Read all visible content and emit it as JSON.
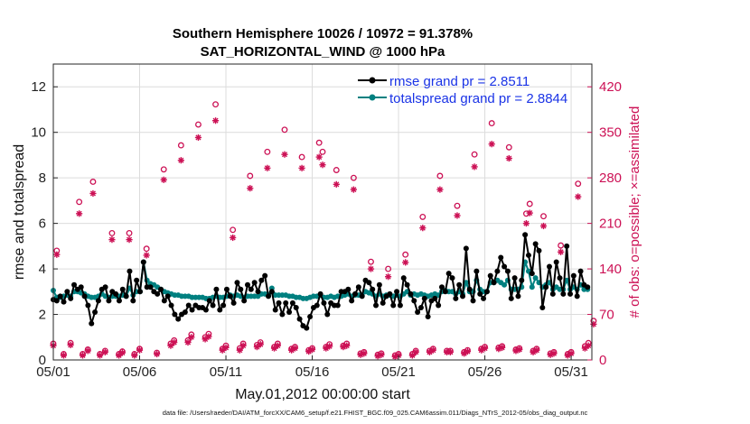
{
  "chart_data": {
    "type": "line",
    "title_line1": "Southern Hemisphere 10026 / 10972 = 91.378%",
    "title_line2": "SAT_HORIZONTAL_WIND @ 1000 hPa",
    "xlabel": "May.01,2012 00:00:00 start",
    "ylabel": "rmse and totalspread",
    "ylabel_right": "# of obs: o=possible; ×=assimilated",
    "footnote": "data file: /Users/raeder/DAI/ATM_forcXX/CAM6_setup/f.e21.FHIST_BGC.f09_025.CAM6assim.011/Diags_NTrS_2012-05/obs_diag_output.nc",
    "xlim": [
      1,
      32.2
    ],
    "ylim": [
      0,
      13
    ],
    "ylim_right": [
      0,
      455
    ],
    "x_ticks": [
      {
        "v": 1,
        "label": "05/01"
      },
      {
        "v": 6,
        "label": "05/06"
      },
      {
        "v": 11,
        "label": "05/11"
      },
      {
        "v": 16,
        "label": "05/16"
      },
      {
        "v": 21,
        "label": "05/21"
      },
      {
        "v": 26,
        "label": "05/26"
      },
      {
        "v": 31,
        "label": "05/31"
      }
    ],
    "y_ticks": [
      0,
      2,
      4,
      6,
      8,
      10,
      12
    ],
    "y_ticks_right": [
      0,
      70,
      140,
      210,
      280,
      350,
      420
    ],
    "grid": true,
    "series": [
      {
        "name": "rmse grand pr = 2.8511",
        "color": "#000000",
        "axis": "left",
        "values": [
          2.65,
          2.6,
          2.8,
          2.55,
          3.0,
          2.7,
          3.3,
          3.1,
          3.2,
          2.8,
          2.4,
          1.6,
          2.1,
          2.6,
          3.1,
          3.2,
          2.6,
          3.0,
          2.9,
          2.6,
          3.1,
          2.8,
          3.9,
          2.6,
          3.5,
          3.0,
          4.3,
          3.2,
          3.2,
          3.0,
          2.9,
          3.1,
          2.6,
          2.8,
          2.4,
          2.0,
          1.8,
          2.0,
          2.1,
          2.4,
          2.2,
          2.4,
          2.3,
          2.3,
          2.2,
          2.6,
          2.4,
          3.1,
          2.2,
          2.4,
          3.1,
          2.8,
          2.5,
          3.4,
          3.1,
          2.6,
          3.3,
          3.1,
          3.4,
          3.0,
          3.5,
          3.7,
          2.8,
          3.0,
          2.2,
          2.5,
          2.0,
          2.5,
          2.1,
          2.5,
          2.3,
          1.8,
          1.5,
          1.4,
          1.9,
          2.3,
          2.4,
          2.9,
          2.5,
          2.0,
          2.5,
          2.4,
          2.4,
          3.0,
          3.0,
          3.1,
          2.6,
          2.9,
          3.2,
          2.8,
          3.5,
          3.4,
          3.1,
          2.4,
          3.3,
          2.5,
          2.8,
          2.9,
          2.4,
          3.0,
          2.4,
          3.6,
          3.3,
          2.9,
          2.6,
          2.1,
          2.3,
          2.7,
          1.9,
          2.6,
          2.7,
          2.4,
          3.2,
          3.0,
          3.8,
          3.6,
          2.7,
          3.3,
          2.8,
          4.9,
          3.1,
          2.6,
          3.9,
          2.9,
          2.7,
          3.0,
          3.7,
          3.4,
          3.9,
          4.5,
          4.1,
          3.9,
          2.7,
          3.6,
          2.8,
          3.5,
          5.5,
          4.6,
          3.8,
          5.1,
          4.8,
          2.3,
          3.2,
          4.1,
          2.9,
          4.3,
          3.6,
          2.9,
          5.0,
          2.9,
          3.7,
          2.8,
          3.9,
          3.3,
          3.2
        ]
      },
      {
        "name": "totalspread grand pr = 2.8844",
        "color": "#008080",
        "axis": "left",
        "values": [
          3.05,
          2.75,
          2.75,
          2.8,
          2.85,
          2.8,
          3.0,
          3.0,
          2.95,
          2.9,
          2.8,
          2.75,
          2.75,
          2.8,
          2.9,
          2.8,
          2.75,
          2.8,
          2.8,
          2.8,
          2.85,
          2.8,
          3.15,
          2.85,
          3.0,
          3.0,
          4.3,
          3.5,
          3.35,
          3.3,
          3.2,
          3.1,
          3.0,
          2.95,
          2.9,
          2.85,
          2.85,
          2.8,
          2.8,
          2.8,
          2.75,
          2.75,
          2.75,
          2.75,
          2.7,
          2.7,
          2.75,
          2.8,
          2.75,
          2.75,
          2.8,
          2.85,
          2.8,
          2.85,
          2.8,
          2.75,
          2.8,
          2.8,
          2.8,
          2.8,
          2.9,
          2.9,
          2.85,
          3.15,
          2.85,
          2.85,
          2.85,
          2.85,
          2.8,
          2.8,
          2.75,
          2.75,
          2.7,
          2.7,
          2.75,
          2.8,
          2.8,
          2.85,
          2.75,
          2.75,
          2.8,
          2.75,
          2.8,
          2.8,
          2.85,
          2.9,
          2.8,
          2.85,
          2.85,
          2.85,
          3.0,
          2.95,
          2.9,
          2.8,
          2.9,
          2.8,
          2.85,
          2.85,
          2.8,
          2.85,
          2.8,
          2.9,
          3.0,
          2.85,
          2.9,
          2.85,
          2.9,
          2.85,
          2.8,
          2.85,
          2.9,
          2.85,
          3.0,
          3.05,
          3.0,
          3.0,
          2.9,
          3.0,
          2.9,
          3.4,
          3.0,
          3.0,
          3.5,
          3.1,
          3.0,
          3.0,
          3.4,
          3.4,
          3.5,
          3.4,
          3.3,
          3.5,
          3.1,
          3.1,
          3.1,
          3.2,
          4.3,
          3.9,
          3.2,
          3.6,
          3.4,
          3.2,
          3.3,
          3.4,
          3.1,
          3.2,
          3.1,
          3.1,
          3.5,
          3.1,
          3.2,
          3.1,
          3.3,
          3.1,
          3.1
        ]
      }
    ],
    "obs_counts": {
      "color": "#cc1155",
      "axis": "right",
      "possible": [
        {
          "x": 1.0,
          "y": 25
        },
        {
          "x": 1.2,
          "y": 168
        },
        {
          "x": 1.6,
          "y": 9
        },
        {
          "x": 2.0,
          "y": 26
        },
        {
          "x": 2.5,
          "y": 243
        },
        {
          "x": 2.7,
          "y": 9
        },
        {
          "x": 3.0,
          "y": 16
        },
        {
          "x": 3.3,
          "y": 274
        },
        {
          "x": 3.7,
          "y": 9
        },
        {
          "x": 4.0,
          "y": 14
        },
        {
          "x": 4.4,
          "y": 195
        },
        {
          "x": 4.8,
          "y": 9
        },
        {
          "x": 5.0,
          "y": 13
        },
        {
          "x": 5.4,
          "y": 195
        },
        {
          "x": 5.7,
          "y": 9
        },
        {
          "x": 6.0,
          "y": 17
        },
        {
          "x": 6.4,
          "y": 171
        },
        {
          "x": 7.0,
          "y": 11
        },
        {
          "x": 7.4,
          "y": 293
        },
        {
          "x": 7.8,
          "y": 25
        },
        {
          "x": 8.0,
          "y": 30
        },
        {
          "x": 8.4,
          "y": 330
        },
        {
          "x": 8.8,
          "y": 30
        },
        {
          "x": 9.0,
          "y": 39
        },
        {
          "x": 9.4,
          "y": 362
        },
        {
          "x": 9.8,
          "y": 35
        },
        {
          "x": 10.0,
          "y": 40
        },
        {
          "x": 10.4,
          "y": 393
        },
        {
          "x": 10.8,
          "y": 17
        },
        {
          "x": 11.0,
          "y": 22
        },
        {
          "x": 11.4,
          "y": 200
        },
        {
          "x": 11.8,
          "y": 18
        },
        {
          "x": 12.0,
          "y": 25
        },
        {
          "x": 12.4,
          "y": 283
        },
        {
          "x": 12.8,
          "y": 23
        },
        {
          "x": 13.0,
          "y": 27
        },
        {
          "x": 13.4,
          "y": 320
        },
        {
          "x": 13.8,
          "y": 20
        },
        {
          "x": 14.0,
          "y": 25
        },
        {
          "x": 14.4,
          "y": 354
        },
        {
          "x": 14.8,
          "y": 17
        },
        {
          "x": 15.0,
          "y": 20
        },
        {
          "x": 15.4,
          "y": 312
        },
        {
          "x": 15.8,
          "y": 15
        },
        {
          "x": 16.0,
          "y": 18
        },
        {
          "x": 16.4,
          "y": 334
        },
        {
          "x": 16.8,
          "y": 20
        },
        {
          "x": 17.0,
          "y": 24
        },
        {
          "x": 17.4,
          "y": 292
        },
        {
          "x": 17.8,
          "y": 22
        },
        {
          "x": 18.0,
          "y": 25
        },
        {
          "x": 18.4,
          "y": 280
        },
        {
          "x": 18.8,
          "y": 10
        },
        {
          "x": 19.0,
          "y": 12
        },
        {
          "x": 19.4,
          "y": 151
        },
        {
          "x": 19.8,
          "y": 8
        },
        {
          "x": 20.0,
          "y": 10
        },
        {
          "x": 20.4,
          "y": 140
        },
        {
          "x": 20.8,
          "y": 7
        },
        {
          "x": 21.0,
          "y": 9
        },
        {
          "x": 21.4,
          "y": 162
        },
        {
          "x": 21.8,
          "y": 9
        },
        {
          "x": 22.0,
          "y": 14
        },
        {
          "x": 22.4,
          "y": 220
        },
        {
          "x": 22.8,
          "y": 14
        },
        {
          "x": 23.0,
          "y": 17
        },
        {
          "x": 23.4,
          "y": 283
        },
        {
          "x": 23.8,
          "y": 14
        },
        {
          "x": 24.0,
          "y": 14
        },
        {
          "x": 24.4,
          "y": 237
        },
        {
          "x": 24.8,
          "y": 12
        },
        {
          "x": 25.0,
          "y": 15
        },
        {
          "x": 25.4,
          "y": 316
        },
        {
          "x": 25.8,
          "y": 17
        },
        {
          "x": 26.0,
          "y": 20
        },
        {
          "x": 26.4,
          "y": 364
        },
        {
          "x": 26.8,
          "y": 19
        },
        {
          "x": 27.0,
          "y": 21
        },
        {
          "x": 27.4,
          "y": 327
        },
        {
          "x": 27.8,
          "y": 16
        },
        {
          "x": 28.0,
          "y": 18
        },
        {
          "x": 28.4,
          "y": 225
        },
        {
          "x": 28.8,
          "y": 14
        },
        {
          "x": 29.0,
          "y": 17
        },
        {
          "x": 29.4,
          "y": 221
        },
        {
          "x": 29.8,
          "y": 10
        },
        {
          "x": 30.0,
          "y": 12
        },
        {
          "x": 30.4,
          "y": 176
        },
        {
          "x": 30.8,
          "y": 9
        },
        {
          "x": 31.0,
          "y": 12
        },
        {
          "x": 31.4,
          "y": 271
        },
        {
          "x": 31.8,
          "y": 21
        },
        {
          "x": 32.0,
          "y": 26
        },
        {
          "x": 32.3,
          "y": 60
        },
        {
          "x": 16.6,
          "y": 320
        },
        {
          "x": 28.6,
          "y": 240
        }
      ],
      "assimilated": [
        {
          "x": 1.0,
          "y": 22
        },
        {
          "x": 1.2,
          "y": 162
        },
        {
          "x": 1.6,
          "y": 7
        },
        {
          "x": 2.0,
          "y": 23
        },
        {
          "x": 2.5,
          "y": 225
        },
        {
          "x": 2.7,
          "y": 7
        },
        {
          "x": 3.0,
          "y": 14
        },
        {
          "x": 3.3,
          "y": 256
        },
        {
          "x": 3.7,
          "y": 7
        },
        {
          "x": 4.0,
          "y": 12
        },
        {
          "x": 4.4,
          "y": 185
        },
        {
          "x": 4.8,
          "y": 7
        },
        {
          "x": 5.0,
          "y": 11
        },
        {
          "x": 5.4,
          "y": 185
        },
        {
          "x": 5.7,
          "y": 7
        },
        {
          "x": 6.0,
          "y": 15
        },
        {
          "x": 6.4,
          "y": 161
        },
        {
          "x": 7.0,
          "y": 9
        },
        {
          "x": 7.4,
          "y": 277
        },
        {
          "x": 7.8,
          "y": 22
        },
        {
          "x": 8.0,
          "y": 27
        },
        {
          "x": 8.4,
          "y": 307
        },
        {
          "x": 8.8,
          "y": 27
        },
        {
          "x": 9.0,
          "y": 35
        },
        {
          "x": 9.4,
          "y": 342
        },
        {
          "x": 9.8,
          "y": 32
        },
        {
          "x": 10.0,
          "y": 36
        },
        {
          "x": 10.4,
          "y": 368
        },
        {
          "x": 10.8,
          "y": 15
        },
        {
          "x": 11.0,
          "y": 19
        },
        {
          "x": 11.4,
          "y": 188
        },
        {
          "x": 11.8,
          "y": 15
        },
        {
          "x": 12.0,
          "y": 22
        },
        {
          "x": 12.4,
          "y": 264
        },
        {
          "x": 12.8,
          "y": 20
        },
        {
          "x": 13.0,
          "y": 24
        },
        {
          "x": 13.4,
          "y": 295
        },
        {
          "x": 13.8,
          "y": 18
        },
        {
          "x": 14.0,
          "y": 22
        },
        {
          "x": 14.4,
          "y": 316
        },
        {
          "x": 14.8,
          "y": 15
        },
        {
          "x": 15.0,
          "y": 18
        },
        {
          "x": 15.4,
          "y": 295
        },
        {
          "x": 15.8,
          "y": 13
        },
        {
          "x": 16.0,
          "y": 16
        },
        {
          "x": 16.4,
          "y": 312
        },
        {
          "x": 16.8,
          "y": 18
        },
        {
          "x": 17.0,
          "y": 21
        },
        {
          "x": 17.4,
          "y": 270
        },
        {
          "x": 17.8,
          "y": 20
        },
        {
          "x": 18.0,
          "y": 22
        },
        {
          "x": 18.4,
          "y": 262
        },
        {
          "x": 18.8,
          "y": 8
        },
        {
          "x": 19.0,
          "y": 10
        },
        {
          "x": 19.4,
          "y": 140
        },
        {
          "x": 19.8,
          "y": 6
        },
        {
          "x": 20.0,
          "y": 8
        },
        {
          "x": 20.4,
          "y": 128
        },
        {
          "x": 20.8,
          "y": 5
        },
        {
          "x": 21.0,
          "y": 7
        },
        {
          "x": 21.4,
          "y": 150
        },
        {
          "x": 21.8,
          "y": 7
        },
        {
          "x": 22.0,
          "y": 12
        },
        {
          "x": 22.4,
          "y": 203
        },
        {
          "x": 22.8,
          "y": 12
        },
        {
          "x": 23.0,
          "y": 15
        },
        {
          "x": 23.4,
          "y": 262
        },
        {
          "x": 23.8,
          "y": 12
        },
        {
          "x": 24.0,
          "y": 12
        },
        {
          "x": 24.4,
          "y": 222
        },
        {
          "x": 24.8,
          "y": 10
        },
        {
          "x": 25.0,
          "y": 13
        },
        {
          "x": 25.4,
          "y": 297
        },
        {
          "x": 25.8,
          "y": 15
        },
        {
          "x": 26.0,
          "y": 18
        },
        {
          "x": 26.4,
          "y": 332
        },
        {
          "x": 26.8,
          "y": 17
        },
        {
          "x": 27.0,
          "y": 19
        },
        {
          "x": 27.4,
          "y": 310
        },
        {
          "x": 27.8,
          "y": 14
        },
        {
          "x": 28.0,
          "y": 16
        },
        {
          "x": 28.4,
          "y": 210
        },
        {
          "x": 28.8,
          "y": 12
        },
        {
          "x": 29.0,
          "y": 15
        },
        {
          "x": 29.4,
          "y": 206
        },
        {
          "x": 29.8,
          "y": 8
        },
        {
          "x": 30.0,
          "y": 10
        },
        {
          "x": 30.4,
          "y": 166
        },
        {
          "x": 30.8,
          "y": 7
        },
        {
          "x": 31.0,
          "y": 10
        },
        {
          "x": 31.4,
          "y": 251
        },
        {
          "x": 31.8,
          "y": 18
        },
        {
          "x": 32.0,
          "y": 22
        },
        {
          "x": 32.3,
          "y": 55
        },
        {
          "x": 16.6,
          "y": 300
        },
        {
          "x": 28.6,
          "y": 226
        }
      ]
    }
  }
}
